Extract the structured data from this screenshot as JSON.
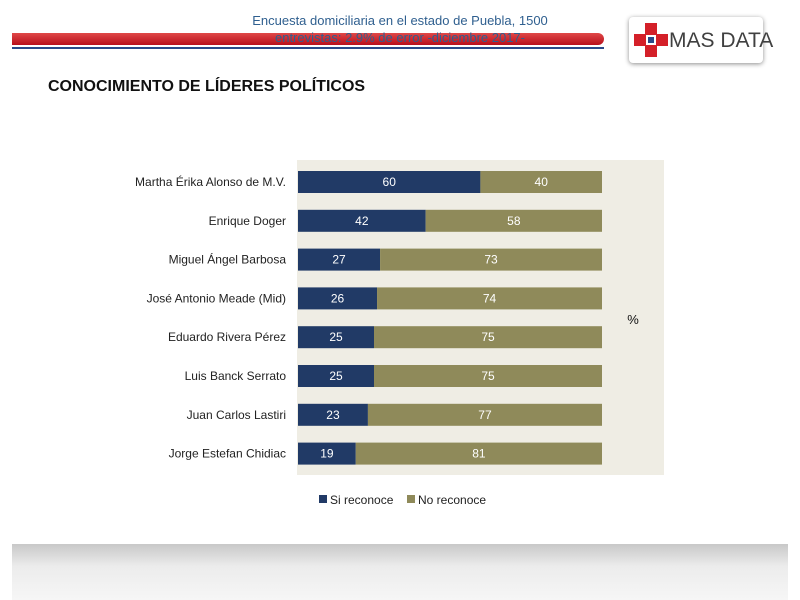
{
  "brand": {
    "name": "MAS DATA"
  },
  "page_title": "CONOCIMIENTO DE LÍDERES POLÍTICOS",
  "footer": {
    "line1": "Encuesta domiciliaria en el estado de Puebla, 1500",
    "line2": "entrevistas: 2.9% de error -diciembre 2017-"
  },
  "colors": {
    "si_reconoce": "#213a66",
    "no_reconoce": "#8f8a5a",
    "plot_bg": "#efede4",
    "accent_red": "#cc2229"
  },
  "chart_data": {
    "type": "bar",
    "orientation": "horizontal",
    "stacked": true,
    "unit_label": "%",
    "categories": [
      "Martha Érika Alonso de M.V.",
      "Enrique Doger",
      "Miguel Ángel Barbosa",
      "José Antonio Meade (Mid)",
      "Eduardo Rivera Pérez",
      "Luis Banck Serrato",
      "Juan Carlos Lastiri",
      "Jorge Estefan Chidiac"
    ],
    "series": [
      {
        "name": "Si reconoce",
        "values": [
          60,
          42,
          27,
          26,
          25,
          25,
          23,
          19
        ]
      },
      {
        "name": "No reconoce",
        "values": [
          40,
          58,
          73,
          74,
          75,
          75,
          77,
          81
        ]
      }
    ],
    "xlim": [
      0,
      100
    ],
    "legend": "bottom"
  }
}
